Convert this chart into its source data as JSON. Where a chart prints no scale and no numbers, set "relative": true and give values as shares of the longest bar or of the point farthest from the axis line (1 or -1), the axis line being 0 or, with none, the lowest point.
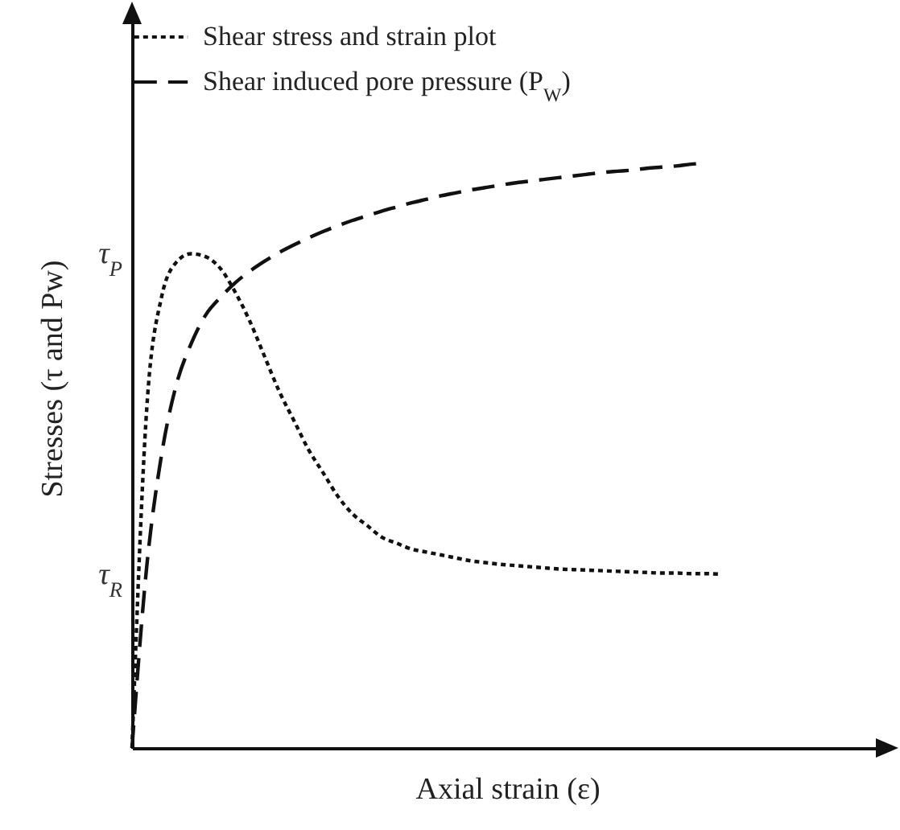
{
  "chart_data": {
    "type": "line",
    "relative": true,
    "xlabel": "Axial strain (ε)",
    "ylabel": "Stresses (τ and Pw)",
    "legend": "top left",
    "tick_labels": false,
    "categories": [
      null,
      null,
      null,
      null,
      null,
      null,
      null,
      null,
      null,
      null,
      null,
      null,
      null,
      null,
      null,
      null,
      null,
      null,
      null,
      null,
      null,
      null,
      null,
      null,
      null,
      null,
      null,
      null,
      null,
      null,
      null,
      null,
      null,
      null,
      null,
      null,
      null,
      null,
      null,
      null,
      null,
      null,
      null,
      null,
      null,
      null,
      null,
      null,
      null,
      null,
      null,
      null
    ],
    "series": [
      {
        "name": "Shear stress and strain plot",
        "color": "#111111",
        "line_style": "dotted",
        "values": [
          0,
          0.58,
          0.77,
          0.83,
          0.845,
          0.84,
          0.82,
          0.78,
          0.73,
          0.67,
          0.61,
          0.56,
          0.51,
          0.47,
          0.43,
          0.4,
          0.38,
          0.36,
          0.35,
          0.34,
          0.335,
          0.33,
          0.325,
          0.32,
          0.317,
          0.314,
          0.312,
          0.31,
          0.308,
          0.306,
          0.305,
          0.304,
          0.303,
          0.302,
          0.301,
          0.3,
          0.299,
          0.299,
          0.298,
          0.298,
          0.297,
          null,
          null,
          null,
          null,
          null,
          null,
          null,
          null,
          null,
          null,
          null
        ]
      },
      {
        "name": "Shear induced pore pressure (P$_{W}$)",
        "color": "#111111",
        "line_style": "dashed",
        "values": [
          0,
          0.31,
          0.5,
          0.62,
          0.69,
          0.74,
          0.77,
          0.795,
          0.815,
          0.832,
          0.847,
          0.86,
          0.872,
          0.883,
          0.893,
          0.902,
          0.91,
          0.918,
          0.925,
          0.932,
          0.938,
          0.944,
          0.949,
          0.954,
          0.958,
          0.962,
          0.966,
          0.969,
          0.972,
          0.975,
          0.978,
          0.981,
          0.984,
          0.986,
          0.988,
          0.991,
          0.993,
          0.995,
          0.998,
          1.0,
          null,
          null,
          null,
          null,
          null,
          null,
          null,
          null,
          null,
          null,
          null,
          null
        ]
      }
    ],
    "annotations": [
      "τ$_{P}$",
      "τ$_{R}$"
    ]
  }
}
